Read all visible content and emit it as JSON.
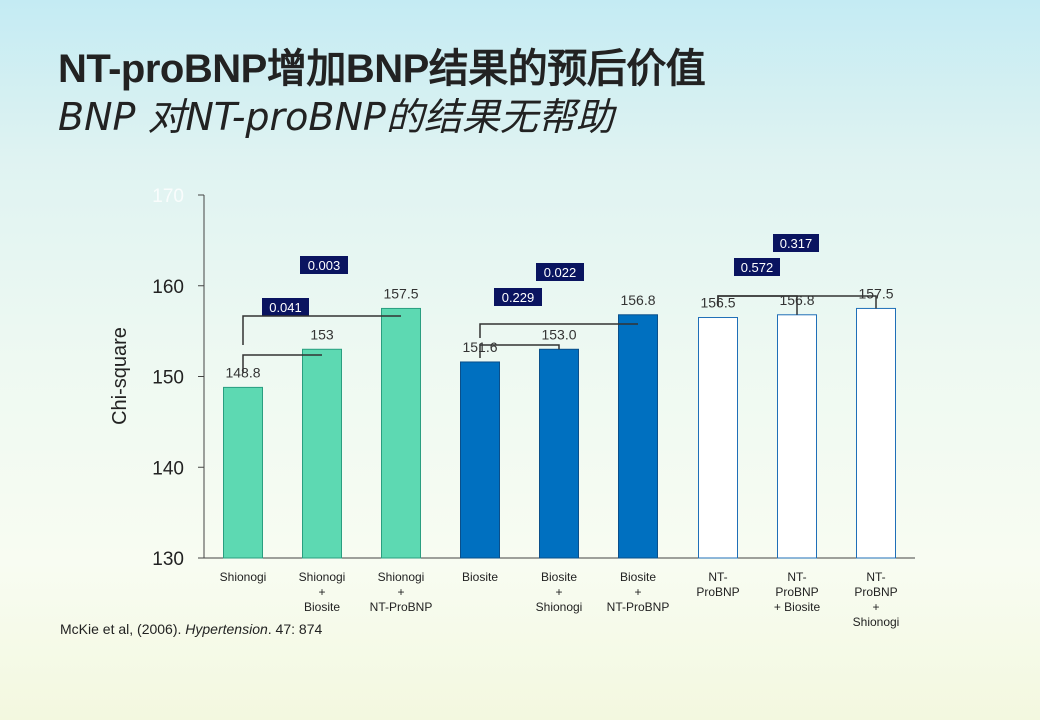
{
  "title": "NT-proBNP增加BNP结果的预后价值",
  "subtitle": "BNP 对NT-proBNP的结果无帮助",
  "citation": {
    "prefix": "McKie et al, (2006). ",
    "journal": "Hypertension",
    "suffix": ".  47: 874"
  },
  "chart_data": {
    "type": "bar",
    "ylabel": "Chi-square",
    "ylim": [
      130,
      170
    ],
    "yticks": [
      130,
      140,
      150,
      160,
      170
    ],
    "grid": false,
    "categories": [
      [
        "Shionogi"
      ],
      [
        "Shionogi",
        "+",
        "Biosite"
      ],
      [
        "Shionogi",
        "+",
        "NT-ProBNP"
      ],
      [
        "Biosite"
      ],
      [
        "Biosite",
        "+",
        "Shionogi"
      ],
      [
        "Biosite",
        "+",
        "NT-ProBNP"
      ],
      [
        "NT-",
        "ProBNP"
      ],
      [
        "NT-",
        "ProBNP",
        "+ Biosite"
      ],
      [
        "NT-",
        "ProBNP",
        "+",
        "Shionogi"
      ]
    ],
    "values": [
      148.8,
      153,
      157.5,
      151.6,
      153.0,
      156.8,
      156.5,
      156.8,
      157.5
    ],
    "value_labels": [
      "148.8",
      "153",
      "157.5",
      "151.6",
      "153.0",
      "156.8",
      "156.5",
      "156.8",
      "157.5"
    ],
    "bar_colors": [
      "#5dd9b2",
      "#5dd9b2",
      "#5dd9b2",
      "#0070c0",
      "#0070c0",
      "#0070c0",
      "#ffffff",
      "#ffffff",
      "#ffffff"
    ],
    "p_values": [
      {
        "label": "0.041",
        "from": 0,
        "to": 1
      },
      {
        "label": "0.003",
        "from": 0,
        "to": 2
      },
      {
        "label": "0.229",
        "from": 3,
        "to": 4
      },
      {
        "label": "0.022",
        "from": 3,
        "to": 5
      },
      {
        "label": "0.572",
        "from": 6,
        "to": 7
      },
      {
        "label": "0.317",
        "from": 6,
        "to": 8
      }
    ]
  }
}
